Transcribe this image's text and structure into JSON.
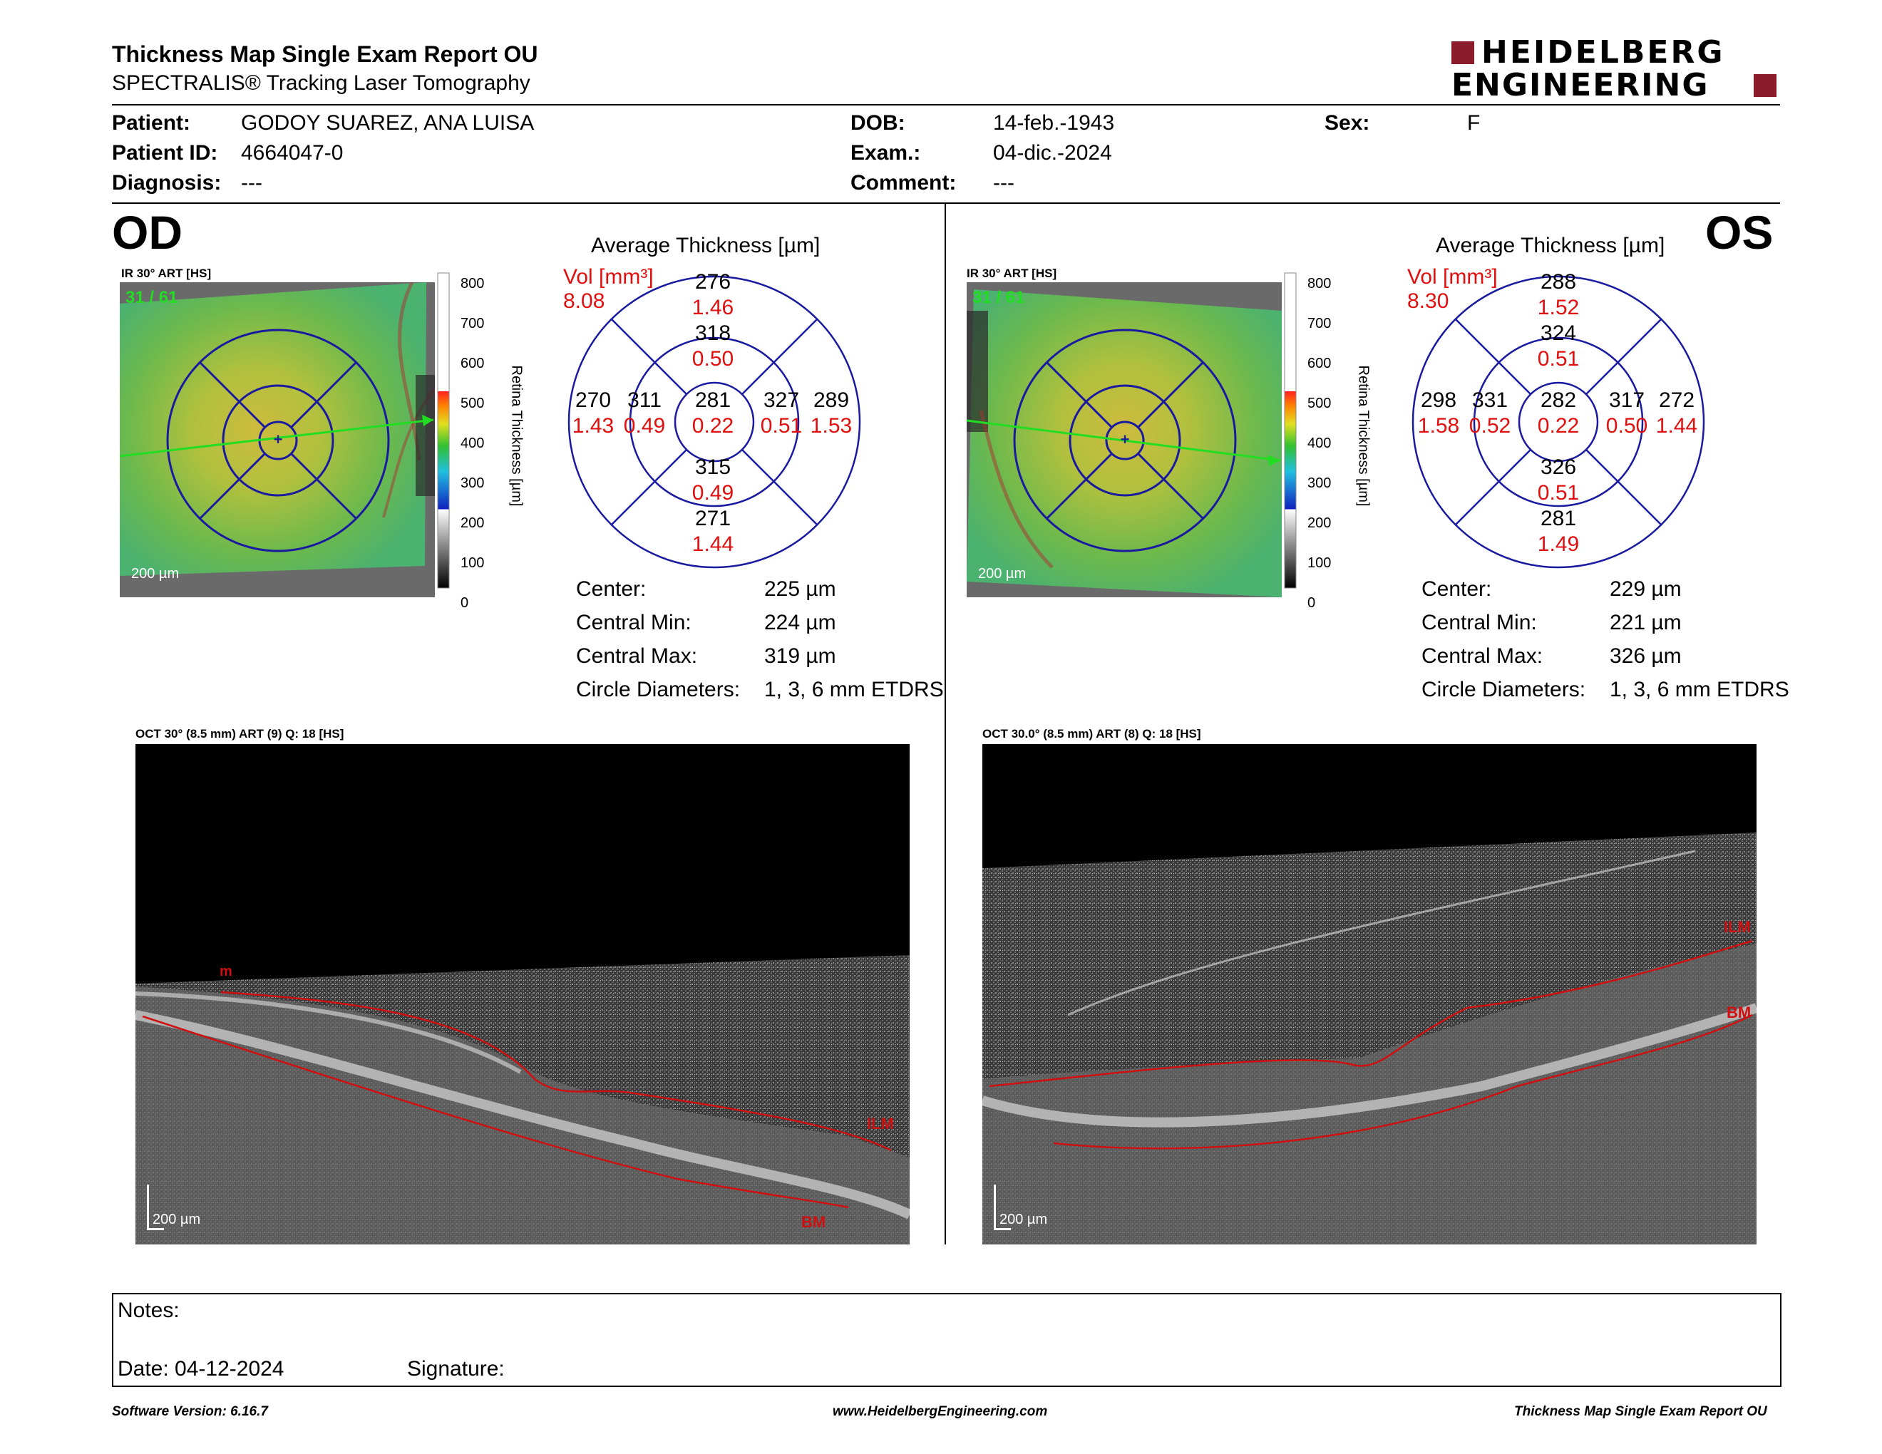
{
  "header": {
    "title": "Thickness Map Single Exam Report OU",
    "subtitle": "SPECTRALIS® Tracking Laser Tomography",
    "logo_line1": "HEIDELBERG",
    "logo_line2": "ENGINEERING",
    "logo_color": "#8b1a2b"
  },
  "patient": {
    "patient_label": "Patient:",
    "patient_value": "GODOY SUAREZ, ANA LUISA",
    "id_label": "Patient ID:",
    "id_value": "4664047-0",
    "diag_label": "Diagnosis:",
    "diag_value": "---",
    "dob_label": "DOB:",
    "dob_value": "14-feb.-1943",
    "exam_label": "Exam.:",
    "exam_value": "04-dic.-2024",
    "comment_label": "Comment:",
    "comment_value": "---",
    "sex_label": "Sex:",
    "sex_value": "F"
  },
  "od": {
    "eye": "OD",
    "ir_label": "IR 30° ART [HS]",
    "frame": "31 / 61",
    "scale": "200 µm",
    "colorbar_ticks": [
      "800",
      "700",
      "600",
      "500",
      "400",
      "300",
      "200",
      "100",
      "0"
    ],
    "colorbar_title": "Retina  Thickness [µm]",
    "avg_title": "Average Thickness [µm]",
    "vol_label": "Vol [mm³]",
    "vol_value": "8.08",
    "sectors": {
      "center": [
        "281",
        "0.22"
      ],
      "inner_sup": [
        "318",
        "0.50"
      ],
      "inner_inf": [
        "315",
        "0.49"
      ],
      "inner_nasal": [
        "311",
        "0.49"
      ],
      "inner_temp": [
        "327",
        "0.51"
      ],
      "outer_sup": [
        "276",
        "1.46"
      ],
      "outer_inf": [
        "271",
        "1.44"
      ],
      "outer_nasal": [
        "270",
        "1.43"
      ],
      "outer_temp": [
        "289",
        "1.53"
      ]
    },
    "stats": [
      {
        "label": "Center:",
        "value": "225 µm"
      },
      {
        "label": "Central Min:",
        "value": "224 µm"
      },
      {
        "label": "Central Max:",
        "value": "319 µm"
      },
      {
        "label": "Circle Diameters:",
        "value": "1, 3, 6 mm ETDRS"
      }
    ],
    "oct_label": "OCT 30° (8.5 mm) ART (9) Q: 18 [HS]",
    "oct_scale": "200 µm",
    "oct_tags": {
      "left": "m",
      "ilm": "ILM",
      "bm": "BM"
    }
  },
  "os": {
    "eye": "OS",
    "ir_label": "IR 30° ART [HS]",
    "frame": "31 / 61",
    "scale": "200 µm",
    "colorbar_ticks": [
      "800",
      "700",
      "600",
      "500",
      "400",
      "300",
      "200",
      "100",
      "0"
    ],
    "colorbar_title": "Retina  Thickness [µm]",
    "avg_title": "Average Thickness [µm]",
    "vol_label": "Vol [mm³]",
    "vol_value": "8.30",
    "sectors": {
      "center": [
        "282",
        "0.22"
      ],
      "inner_sup": [
        "324",
        "0.51"
      ],
      "inner_inf": [
        "326",
        "0.51"
      ],
      "inner_nasal": [
        "331",
        "0.52"
      ],
      "inner_temp": [
        "317",
        "0.50"
      ],
      "outer_sup": [
        "288",
        "1.52"
      ],
      "outer_inf": [
        "281",
        "1.49"
      ],
      "outer_nasal": [
        "298",
        "1.58"
      ],
      "outer_temp": [
        "272",
        "1.44"
      ]
    },
    "stats": [
      {
        "label": "Center:",
        "value": "229 µm"
      },
      {
        "label": "Central Min:",
        "value": "221 µm"
      },
      {
        "label": "Central Max:",
        "value": "326 µm"
      },
      {
        "label": "Circle Diameters:",
        "value": "1, 3, 6 mm ETDRS"
      }
    ],
    "oct_label": "OCT 30.0° (8.5 mm) ART (8) Q: 18 [HS]",
    "oct_scale": "200 µm",
    "oct_tags": {
      "ilm": "ILM",
      "bm": "BM"
    }
  },
  "notes": {
    "notes_label": "Notes:",
    "date_label": "Date: 04-12-2024",
    "signature_label": "Signature:"
  },
  "footer": {
    "version": "Software Version: 6.16.7",
    "website": "www.HeidelbergEngineering.com",
    "report": "Thickness Map Single Exam Report OU"
  },
  "colors": {
    "circle_blue": "#1a1aa0",
    "value_red": "#e01010",
    "segmentation_red": "#d01010",
    "frame_green": "#22dd22"
  }
}
